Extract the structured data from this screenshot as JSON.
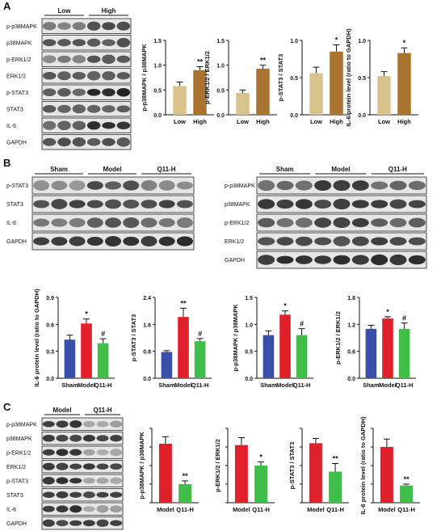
{
  "panels": {
    "A": {
      "label": "A",
      "groups": [
        "Low",
        "High"
      ],
      "blot_rows": [
        "p-p38MAPK",
        "p38MAPK",
        "p-ERK1/2",
        "ERK1/2",
        "p-STAT3",
        "STAT3",
        "IL-6",
        "GAPDH"
      ]
    },
    "B": {
      "label": "B",
      "groups": [
        "Sham",
        "Model",
        "Q11-H"
      ],
      "blot_left_rows": [
        "p-STAT3",
        "STAT3",
        "IL-6",
        "GAPDH"
      ],
      "blot_right_rows": [
        "p-p38MAPK",
        "p38MAPK",
        "p-ERK1/2",
        "ERK1/2",
        "GAPDH"
      ]
    },
    "C": {
      "label": "C",
      "groups": [
        "Model",
        "Q11-H"
      ],
      "blot_rows": [
        "p-p38MAPK",
        "p38MAPK",
        "p-ERK1/2",
        "ERK1/2",
        "p-STAT3",
        "STAT3",
        "IL-6",
        "GAPDH"
      ]
    }
  },
  "chart_data": [
    {
      "panel": "A",
      "type": "bar",
      "categories": [
        "Low",
        "High"
      ],
      "values": [
        0.58,
        0.9
      ],
      "errors": [
        0.08,
        0.07
      ],
      "annotations": [
        "",
        "**"
      ],
      "ylabel": "p-p38MAPK / p38MAPK",
      "ylim": [
        0,
        1.5
      ],
      "yticks": [
        "0.0",
        "0.5",
        "1.0",
        "1.5"
      ],
      "colors": [
        "#d8c38c",
        "#a8742f"
      ]
    },
    {
      "panel": "A",
      "type": "bar",
      "categories": [
        "Low",
        "High"
      ],
      "values": [
        0.44,
        0.93
      ],
      "errors": [
        0.06,
        0.07
      ],
      "annotations": [
        "",
        "**"
      ],
      "ylabel": "p-ERK1/2 / ERK1/2",
      "ylim": [
        0,
        1.5
      ],
      "yticks": [
        "0.0",
        "0.5",
        "1.0",
        "1.5"
      ],
      "colors": [
        "#d8c38c",
        "#a8742f"
      ]
    },
    {
      "panel": "A",
      "type": "bar",
      "categories": [
        "Low",
        "High"
      ],
      "values": [
        0.56,
        0.85
      ],
      "errors": [
        0.08,
        0.09
      ],
      "annotations": [
        "",
        "*"
      ],
      "ylabel": "p-STAT3 / STAT3",
      "ylim": [
        0,
        1.0
      ],
      "yticks": [
        "0.0",
        "0.5",
        "1.0"
      ],
      "colors": [
        "#d8c38c",
        "#a8742f"
      ]
    },
    {
      "panel": "A",
      "type": "bar",
      "categories": [
        "Low",
        "High"
      ],
      "values": [
        0.52,
        0.83
      ],
      "errors": [
        0.06,
        0.07
      ],
      "annotations": [
        "",
        "*"
      ],
      "ylabel": "IL-6 protein level (ratio to GAPDH)",
      "ylim": [
        0,
        1.0
      ],
      "yticks": [
        "0.0",
        "0.5",
        "1.0"
      ],
      "colors": [
        "#d8c38c",
        "#a8742f"
      ]
    },
    {
      "panel": "B",
      "type": "bar",
      "categories": [
        "Sham",
        "Model",
        "Q11-H"
      ],
      "values": [
        0.43,
        0.61,
        0.39
      ],
      "errors": [
        0.05,
        0.05,
        0.05
      ],
      "annotations": [
        "",
        "*",
        "#"
      ],
      "ylabel": "IL-6 protein level (ratio to GAPDH)",
      "ylim": [
        0,
        0.9
      ],
      "yticks": [
        "0.0",
        "0.3",
        "0.6",
        "0.9"
      ],
      "colors": [
        "#3a4faa",
        "#e0202a",
        "#3fbf4a"
      ]
    },
    {
      "panel": "B",
      "type": "bar",
      "categories": [
        "Sham",
        "Model",
        "Q11-H"
      ],
      "values": [
        0.78,
        1.82,
        1.1
      ],
      "errors": [
        0.04,
        0.26,
        0.08
      ],
      "annotations": [
        "",
        "**",
        "#"
      ],
      "ylabel": "p-STAT3 / STAT3",
      "ylim": [
        0,
        2.4
      ],
      "yticks": [
        "0.0",
        "0.8",
        "1.6",
        "2.4"
      ],
      "colors": [
        "#3a4faa",
        "#e0202a",
        "#3fbf4a"
      ]
    },
    {
      "panel": "B",
      "type": "bar",
      "categories": [
        "Sham",
        "Model",
        "Q11-H"
      ],
      "values": [
        0.8,
        1.18,
        0.8
      ],
      "errors": [
        0.08,
        0.07,
        0.12
      ],
      "annotations": [
        "",
        "*",
        "#"
      ],
      "ylabel": "p-p38MAPK / p38MAPK",
      "ylim": [
        0,
        1.5
      ],
      "yticks": [
        "0.0",
        "0.5",
        "1.0",
        "1.5"
      ],
      "colors": [
        "#3a4faa",
        "#e0202a",
        "#3fbf4a"
      ]
    },
    {
      "panel": "B",
      "type": "bar",
      "categories": [
        "Sham",
        "Model",
        "Q11-H"
      ],
      "values": [
        1.1,
        1.33,
        1.1
      ],
      "errors": [
        0.08,
        0.04,
        0.13
      ],
      "annotations": [
        "",
        "*",
        "#"
      ],
      "ylabel": "p-ERK1/2 / ERK1/2",
      "ylim": [
        0,
        1.8
      ],
      "yticks": [
        "0.0",
        "0.6",
        "1.2",
        "1.8"
      ],
      "colors": [
        "#3a4faa",
        "#e0202a",
        "#3fbf4a"
      ]
    },
    {
      "panel": "C",
      "type": "bar",
      "categories": [
        "Model",
        "Q11-H"
      ],
      "values": [
        1.27,
        0.4
      ],
      "errors": [
        0.15,
        0.07
      ],
      "annotations": [
        "",
        "**"
      ],
      "ylabel": "p-p38MAPK / p38MAPK",
      "ylim": [
        0,
        1.6
      ],
      "yticks": [],
      "colors": [
        "#e0202a",
        "#3fbf4a"
      ]
    },
    {
      "panel": "C",
      "type": "bar",
      "categories": [
        "Model",
        "Q11-H"
      ],
      "values": [
        1.55,
        1.0
      ],
      "errors": [
        0.2,
        0.1
      ],
      "annotations": [
        "",
        "*"
      ],
      "ylabel": "p-ERK1/2 / ERK1/2",
      "ylim": [
        0,
        2.0
      ],
      "yticks": [],
      "colors": [
        "#e0202a",
        "#3fbf4a"
      ]
    },
    {
      "panel": "C",
      "type": "bar",
      "categories": [
        "Model",
        "Q11-H"
      ],
      "values": [
        0.88,
        0.46
      ],
      "errors": [
        0.07,
        0.12
      ],
      "annotations": [
        "",
        "**"
      ],
      "ylabel": "p-STAT3 / STAT3",
      "ylim": [
        0,
        1.1
      ],
      "yticks": [],
      "colors": [
        "#e0202a",
        "#3fbf4a"
      ]
    },
    {
      "panel": "C",
      "type": "bar",
      "categories": [
        "Model",
        "Q11-H"
      ],
      "values": [
        1.2,
        0.37
      ],
      "errors": [
        0.17,
        0.03
      ],
      "annotations": [
        "",
        "**"
      ],
      "ylabel": "IL-6 protein level (ratio to GAPDH)",
      "ylim": [
        0,
        1.6
      ],
      "yticks": [],
      "colors": [
        "#e0202a",
        "#3fbf4a"
      ]
    }
  ]
}
